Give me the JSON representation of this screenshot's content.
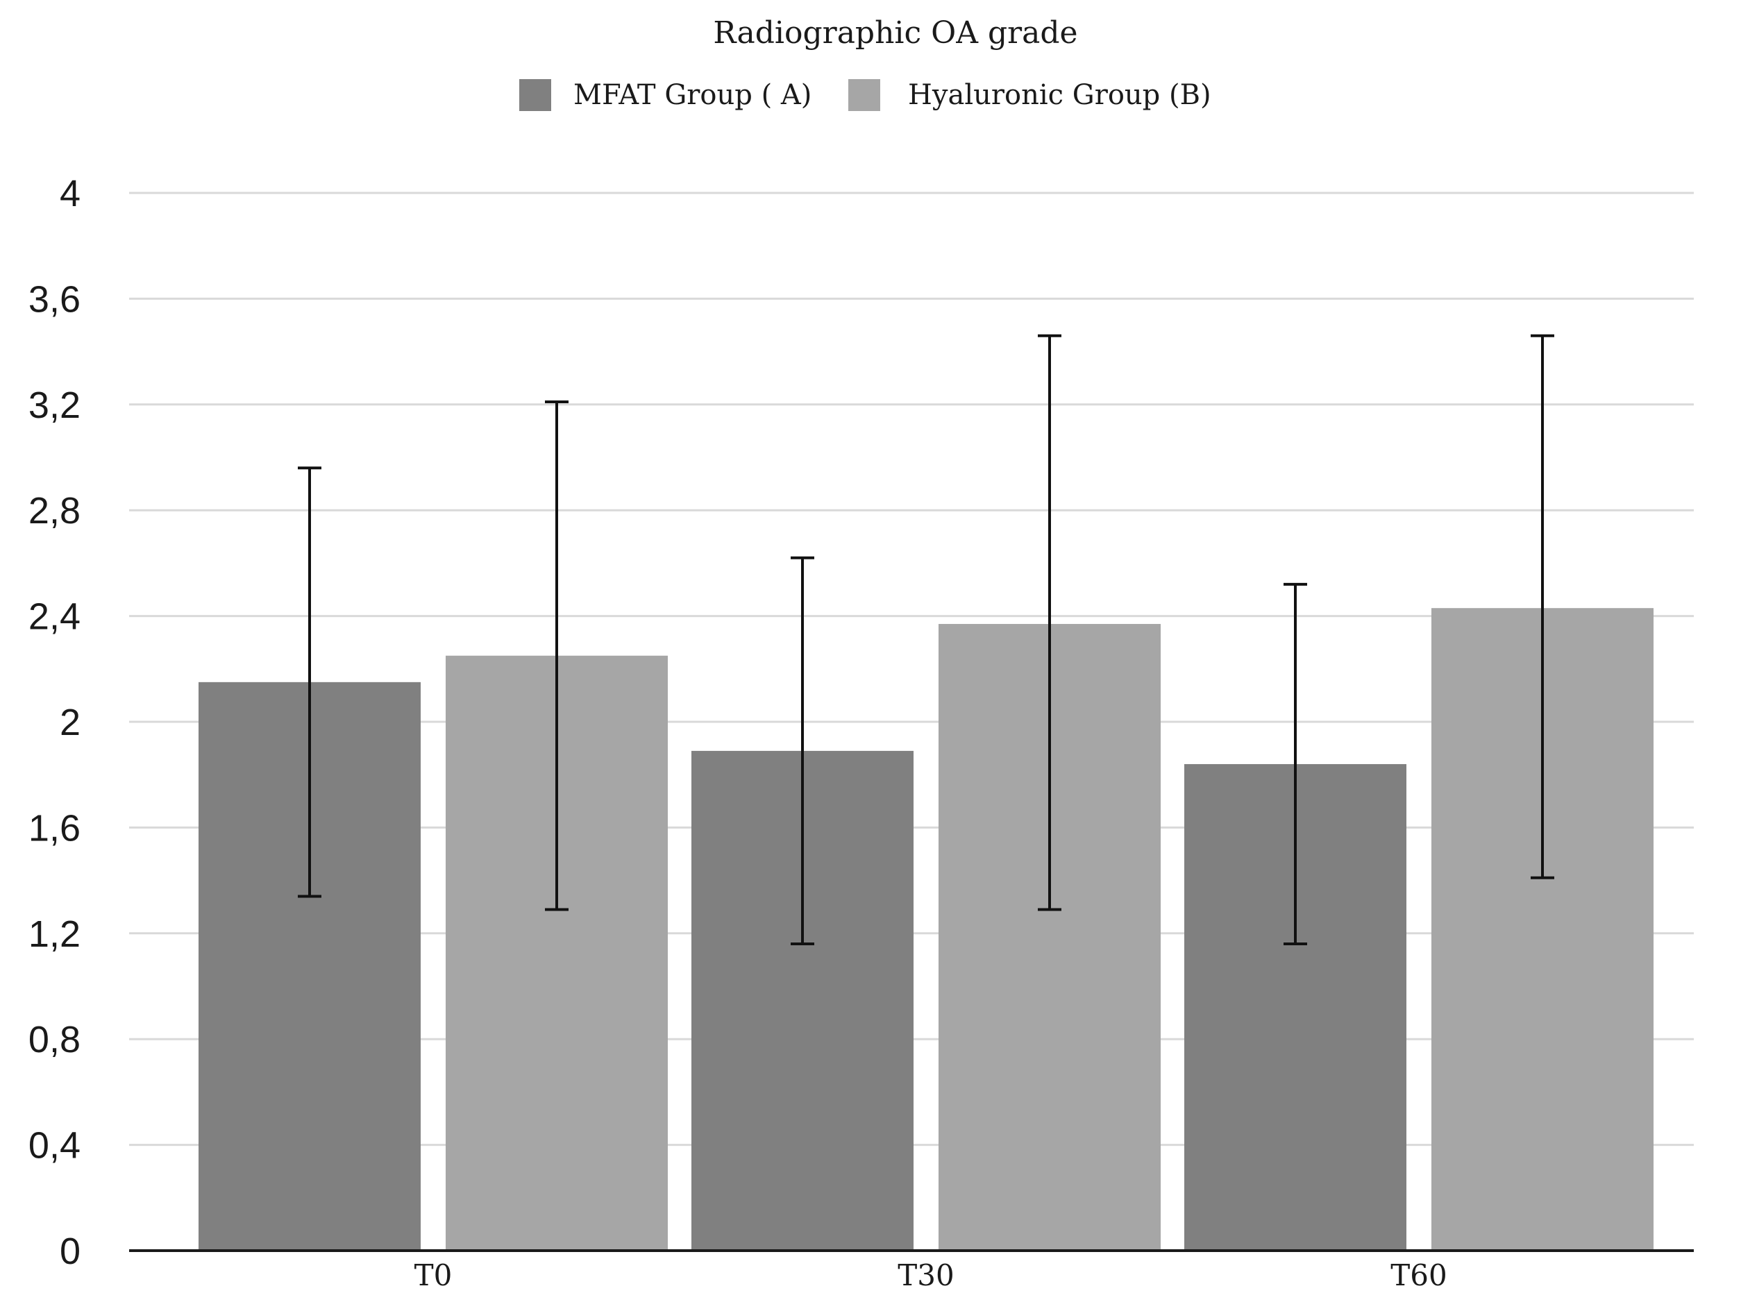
{
  "chart_data": {
    "type": "bar",
    "title": "Radiographic OA grade",
    "categories": [
      "T0",
      "T30",
      "T60"
    ],
    "series": [
      {
        "name": "MFAT Group ( A)",
        "color": "#808080",
        "values": [
          2.15,
          1.89,
          1.84
        ],
        "error_low": [
          1.34,
          1.16,
          1.16
        ],
        "error_high": [
          2.96,
          2.62,
          2.52
        ]
      },
      {
        "name": "Hyaluronic Group (B)",
        "color": "#a6a6a6",
        "values": [
          2.25,
          2.37,
          2.43
        ],
        "error_low": [
          1.29,
          1.29,
          1.41
        ],
        "error_high": [
          3.21,
          3.46,
          3.46
        ]
      }
    ],
    "yticks": [
      "0",
      "0,4",
      "0,8",
      "1,2",
      "1,6",
      "2",
      "2,4",
      "2,8",
      "3,2",
      "3,6",
      "4"
    ],
    "ylim": [
      0,
      4
    ],
    "grid": true,
    "legend": "top-center",
    "xlabel": "",
    "ylabel": ""
  }
}
